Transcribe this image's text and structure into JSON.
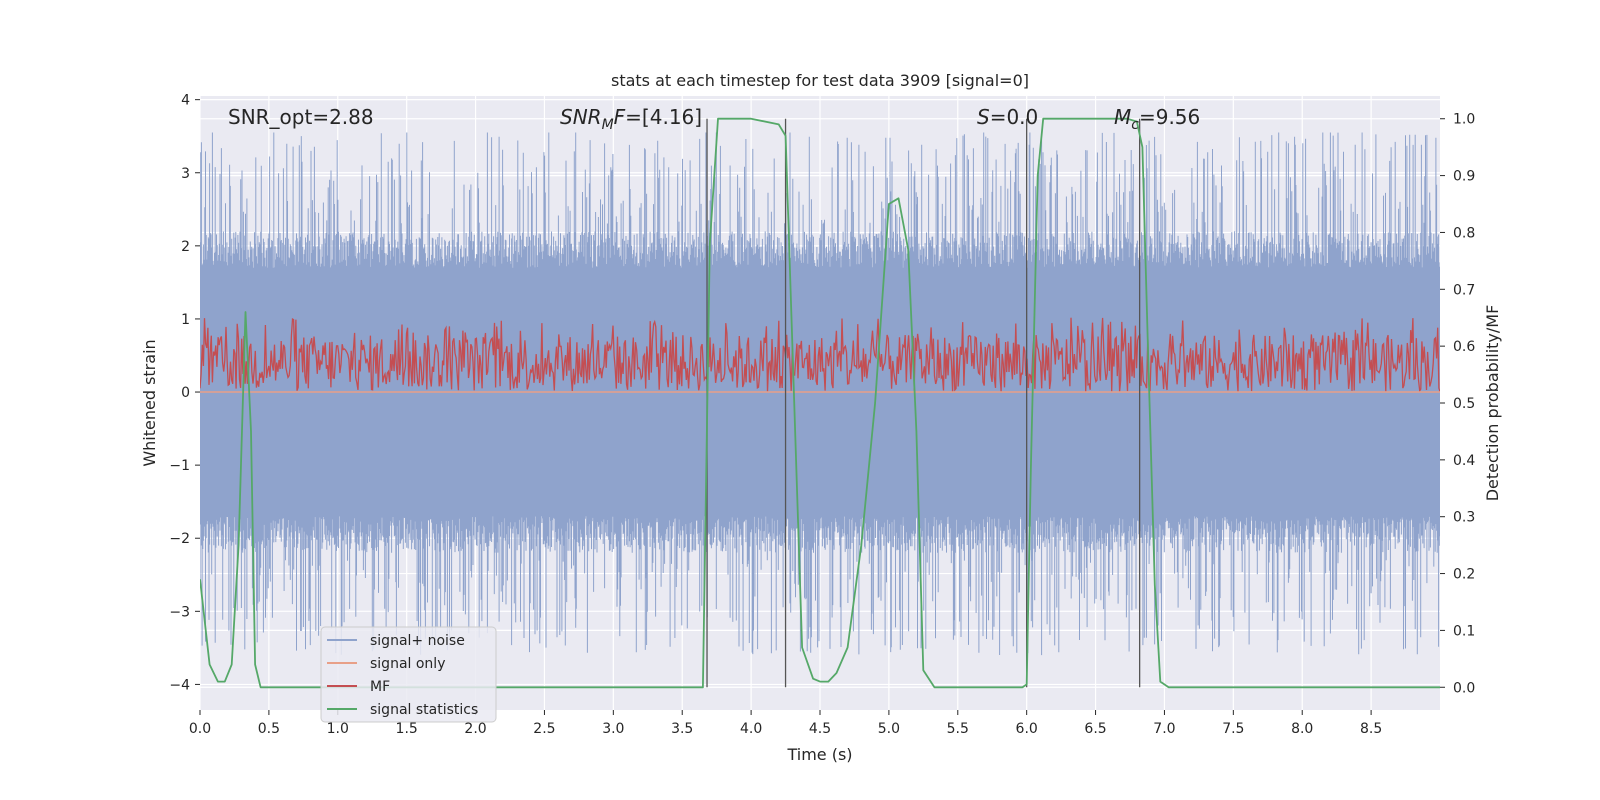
{
  "chart_data": {
    "type": "line",
    "title": "stats at each timestep for test data 3909 [signal=0]",
    "xlabel": "Time (s)",
    "ylabel_left": "Whitened strain",
    "ylabel_right": "Detection probability/MF",
    "xlim": [
      0.0,
      9.0
    ],
    "ylim_left": [
      -4.35,
      4.05
    ],
    "ylim_right": [
      -0.04,
      1.04
    ],
    "x_ticks": [
      0.0,
      0.5,
      1.0,
      1.5,
      2.0,
      2.5,
      3.0,
      3.5,
      4.0,
      4.5,
      5.0,
      5.5,
      6.0,
      6.5,
      7.0,
      7.5,
      8.0,
      8.5
    ],
    "x_tick_labels": [
      "0.0",
      "0.5",
      "1.0",
      "1.5",
      "2.0",
      "2.5",
      "3.0",
      "3.5",
      "4.0",
      "4.5",
      "5.0",
      "5.5",
      "6.0",
      "6.5",
      "7.0",
      "7.5",
      "8.0",
      "8.5"
    ],
    "y_left_ticks": [
      4,
      3,
      2,
      1,
      0,
      -1,
      -2,
      -3,
      -4
    ],
    "y_left_tick_labels": [
      "4",
      "3",
      "2",
      "1",
      "0",
      "−1",
      "−2",
      "−3",
      "−4"
    ],
    "y_right_ticks": [
      1.0,
      0.9,
      0.8,
      0.7,
      0.6,
      0.5,
      0.4,
      0.3,
      0.2,
      0.1,
      0.0
    ],
    "y_right_tick_labels": [
      "1.0",
      "0.9",
      "0.8",
      "0.7",
      "0.6",
      "0.5",
      "0.4",
      "0.3",
      "0.2",
      "0.1",
      "0.0"
    ],
    "grid": true,
    "legend_position": "lower-left",
    "annotations": {
      "snr_opt": "SNR_opt=2.88",
      "snr_mf_sym": "SNR",
      "snr_mf_sub": "M",
      "snr_mf_sym2": "F",
      "snr_mf_val": "=[4.16]",
      "s_sym": "S",
      "s_val": "=0.0",
      "mc_sym": "M",
      "mc_sub": "c",
      "mc_val": "=9.56"
    },
    "vertical_lines_x": [
      3.68,
      4.25,
      6.0,
      6.82
    ],
    "series": [
      {
        "name": "signal+ noise",
        "color": "#8fa3cc",
        "axis": "left",
        "style": "noise band",
        "core_amplitude": 1.7,
        "peak_amplitude": 3.6,
        "min_value": -3.8,
        "max_value": 3.55
      },
      {
        "name": "signal only",
        "color": "#e8a088",
        "axis": "left",
        "values_constant": 0.0
      },
      {
        "name": "MF",
        "color": "#c44e52",
        "axis": "right",
        "style": "noise band",
        "baseline": 0.52,
        "range": [
          0.52,
          0.62
        ],
        "max_value": 0.65
      },
      {
        "name": "signal statistics",
        "color": "#55a868",
        "axis": "right",
        "x": [
          0.0,
          0.07,
          0.13,
          0.18,
          0.23,
          0.28,
          0.33,
          0.37,
          0.4,
          0.44,
          0.5,
          3.6,
          3.65,
          3.7,
          3.76,
          4.0,
          4.2,
          4.25,
          4.3,
          4.37,
          4.45,
          4.5,
          4.56,
          4.62,
          4.7,
          4.8,
          4.9,
          5.0,
          5.07,
          5.14,
          5.2,
          5.25,
          5.33,
          5.4,
          5.97,
          6.0,
          6.03,
          6.08,
          6.12,
          6.35,
          6.55,
          6.73,
          6.8,
          6.84,
          6.88,
          6.93,
          6.97,
          7.03,
          9.0
        ],
        "values": [
          0.19,
          0.04,
          0.01,
          0.01,
          0.04,
          0.25,
          0.66,
          0.45,
          0.04,
          0.0,
          0.0,
          0.0,
          0.0,
          0.78,
          1.0,
          1.0,
          0.99,
          0.97,
          0.6,
          0.07,
          0.015,
          0.01,
          0.01,
          0.025,
          0.07,
          0.25,
          0.5,
          0.85,
          0.86,
          0.77,
          0.45,
          0.03,
          0.0,
          0.0,
          0.0,
          0.005,
          0.38,
          0.9,
          1.0,
          1.0,
          1.0,
          1.0,
          0.995,
          0.95,
          0.6,
          0.18,
          0.01,
          0.0,
          0.0
        ]
      }
    ]
  }
}
